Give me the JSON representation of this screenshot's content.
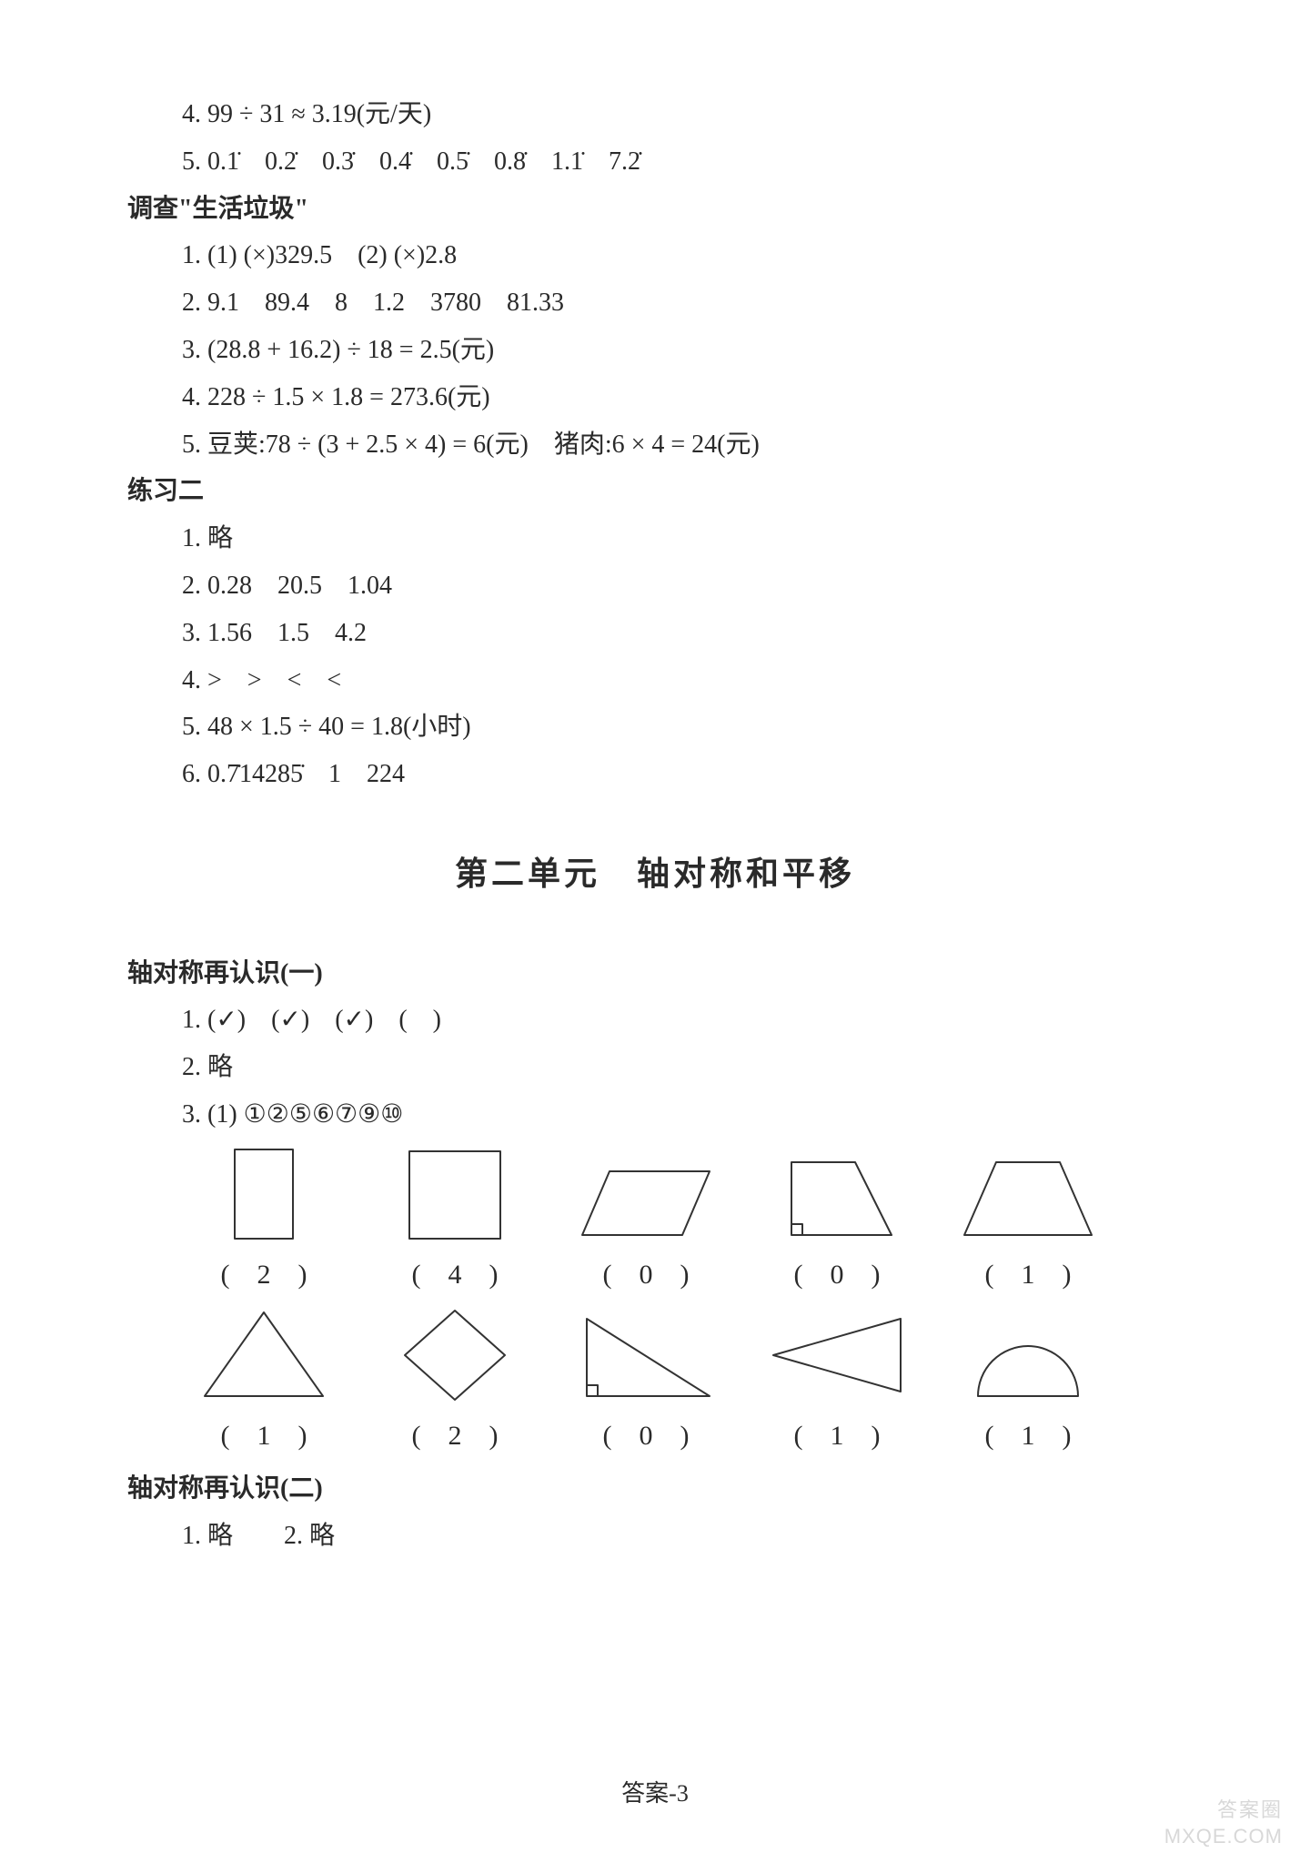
{
  "colors": {
    "text": "#2a2a2a",
    "bg": "#ffffff",
    "shape_stroke": "#333333",
    "watermark": "#d8d8d8"
  },
  "top": {
    "l4": "4. 99 ÷ 31 ≈ 3.19(元/天)",
    "l5": "5. 0.1̇　0.2̇　0.3̇　0.4̇　0.5̇　0.8̇　1.1̇　7.2̇"
  },
  "survey": {
    "title": "调查\"生活垃圾\"",
    "l1": "1. (1) (×)329.5　(2) (×)2.8",
    "l2": "2. 9.1　89.4　8　1.2　3780　81.33",
    "l3": "3. (28.8 + 16.2) ÷ 18 = 2.5(元)",
    "l4": "4. 228 ÷ 1.5 × 1.8 = 273.6(元)",
    "l5": "5. 豆荚:78 ÷ (3 + 2.5 × 4) = 6(元)　猪肉:6 × 4 = 24(元)"
  },
  "ex2": {
    "title": "练习二",
    "l1": "1. 略",
    "l2": "2. 0.28　20.5　1.04",
    "l3": "3. 1.56　1.5　4.2",
    "l4": "4. >　>　<　<",
    "l5": "5. 48 × 1.5 ÷ 40 = 1.8(小时)",
    "l6": "6. 0.7̇14285̇　1　224"
  },
  "unit": {
    "title": "第二单元　轴对称和平移"
  },
  "sym1": {
    "title": "轴对称再认识(一)",
    "l1": "1. (✓)　(✓)　(✓)　(　)",
    "l2": "2. 略",
    "l3": "3. (1) ①②⑤⑥⑦⑨⑩"
  },
  "shapes": {
    "stroke": "#333333",
    "stroke_width": 2,
    "row1": [
      {
        "type": "rect-tall",
        "label": "(　2　)"
      },
      {
        "type": "square",
        "label": "(　4　)"
      },
      {
        "type": "parallelogram",
        "label": "(　0　)"
      },
      {
        "type": "right-trapezoid",
        "label": "(　0　)"
      },
      {
        "type": "iso-trapezoid",
        "label": "(　1　)"
      }
    ],
    "row2": [
      {
        "type": "triangle",
        "label": "(　1　)"
      },
      {
        "type": "diamond",
        "label": "(　2　)"
      },
      {
        "type": "right-triangle",
        "label": "(　0　)"
      },
      {
        "type": "iso-triangle-left",
        "label": "(　1　)"
      },
      {
        "type": "semicircle",
        "label": "(　1　)"
      }
    ]
  },
  "sym2": {
    "title": "轴对称再认识(二)",
    "l1": "1. 略　　2. 略"
  },
  "footer": "答案-3",
  "watermark1": "答案圈",
  "watermark2": "MXQE.COM"
}
